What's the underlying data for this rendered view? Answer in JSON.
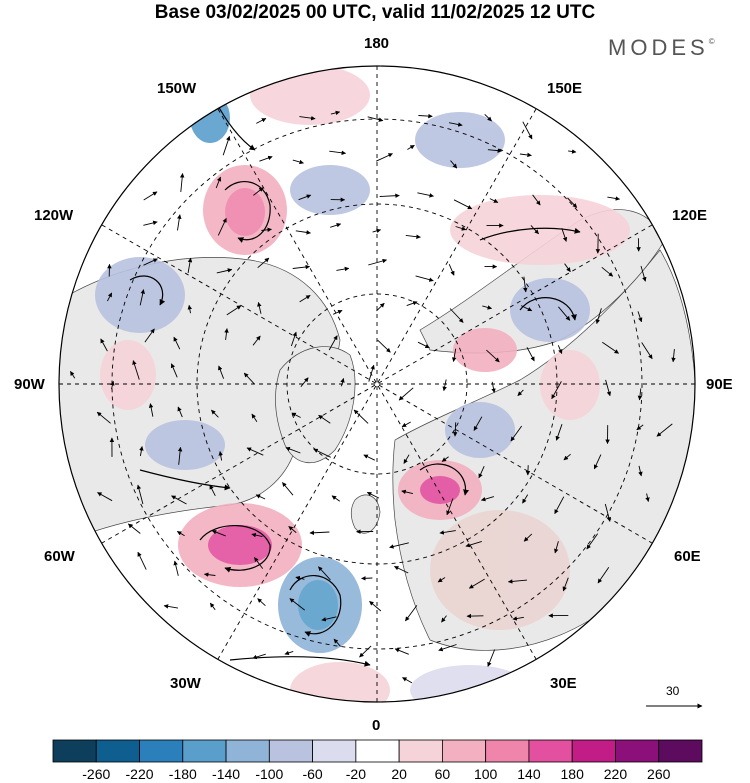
{
  "title": "Base 03/02/2025 00 UTC, valid 11/02/2025 12 UTC",
  "brand": "MODES",
  "brand_mark": "©",
  "longitude_labels": {
    "top": "180",
    "bottom": "0",
    "left": "90W",
    "right": "90E",
    "upper_left_1": "150W",
    "upper_left_2": "120W",
    "upper_right_1": "150E",
    "upper_right_2": "120E",
    "lower_left_1": "60W",
    "lower_left_2": "30W",
    "lower_right_1": "60E",
    "lower_right_2": "30E"
  },
  "reference_vector": {
    "value": "30"
  },
  "colorbar": {
    "ticks": [
      "-260",
      "-220",
      "-180",
      "-140",
      "-100",
      "-60",
      "-20",
      "20",
      "60",
      "100",
      "140",
      "180",
      "220",
      "260"
    ],
    "colors": [
      "#0d3f5c",
      "#0e5f8f",
      "#2b80bb",
      "#5a9fcc",
      "#8fb4d8",
      "#b9c3e0",
      "#dcdcef",
      "#ffffff",
      "#f6d3d9",
      "#f2b0c0",
      "#ef85ab",
      "#e3509f",
      "#c21d86",
      "#8c1079",
      "#5c0b5e"
    ]
  },
  "colors": {
    "land": "#e9e9e9",
    "negative_weak": "#dcdcef",
    "negative_mid": "#b9c3e0",
    "negative_strong": "#5a9fcc",
    "positive_weak": "#f6d3d9",
    "positive_mid": "#f2b0c0",
    "positive_strong": "#e3509f",
    "brown_tint": "#ead0cc"
  }
}
